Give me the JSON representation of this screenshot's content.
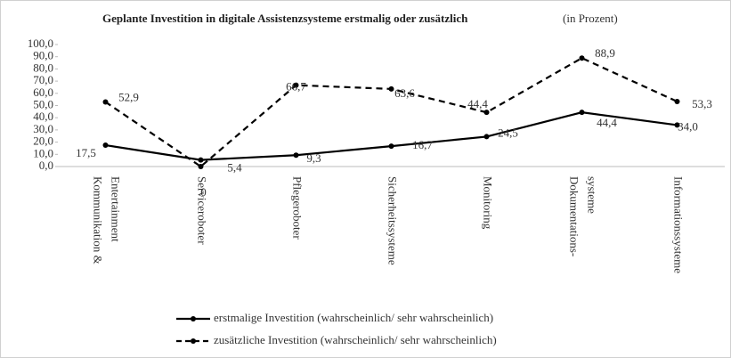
{
  "chart_data": {
    "type": "line",
    "title": "Geplante Investition in digitale Assistenzsysteme erstmalig oder zusätzlich",
    "subtitle": "(in Prozent)",
    "categories": [
      [
        "Kommunikation &",
        "Entertainment"
      ],
      [
        "Serviceroboter"
      ],
      [
        "Pflegeroboter"
      ],
      [
        "Sicherheitssysteme"
      ],
      [
        "Monitoring"
      ],
      [
        "Dokumentations-",
        "systeme"
      ],
      [
        "Informationssysteme"
      ]
    ],
    "series": [
      {
        "name": "erstmalige Investition (wahrscheinlich/ sehr wahrscheinlich)",
        "color": "#000000",
        "dash": false,
        "values": [
          17.5,
          5.4,
          9.3,
          16.7,
          24.5,
          44.4,
          34.0
        ],
        "value_labels": [
          "17,5",
          "5,4",
          "9,3",
          "16,7",
          "24,5",
          "44,4",
          "34,0"
        ]
      },
      {
        "name": "zusätzliche Investition (wahrscheinlich/ sehr wahrscheinlich)",
        "color": "#000000",
        "dash": true,
        "values": [
          52.9,
          0,
          66.7,
          63.6,
          44.4,
          88.9,
          53.3
        ],
        "value_labels": [
          "52,9",
          "0",
          "66,7",
          "63,6",
          "44,4",
          "88,9",
          "53,3"
        ]
      }
    ],
    "ylim": [
      0,
      100
    ],
    "yticks": [
      {
        "value": 0,
        "label": "0,0"
      },
      {
        "value": 10,
        "label": "10,0"
      },
      {
        "value": 20,
        "label": "20,0"
      },
      {
        "value": 30,
        "label": "30,0"
      },
      {
        "value": 40,
        "label": "40,0"
      },
      {
        "value": 50,
        "label": "50,0"
      },
      {
        "value": 60,
        "label": "60,0"
      },
      {
        "value": 70,
        "label": "70,0"
      },
      {
        "value": 80,
        "label": "80,0"
      },
      {
        "value": 90,
        "label": "90,0"
      },
      {
        "value": 100,
        "label": "100,0"
      }
    ],
    "legend": "bottom"
  }
}
